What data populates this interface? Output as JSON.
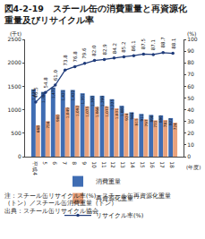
{
  "chart_data": {
    "type": "bar",
    "title": [
      "図4-2-19　スチール缶の消費重量と再資源化",
      "重量及びリサイクル率"
    ],
    "categories": [
      "平成4",
      "5",
      "6",
      "7",
      "8",
      "9",
      "10",
      "11",
      "12",
      "13",
      "14",
      "15",
      "16",
      "17",
      "18"
    ],
    "series": [
      {
        "name": "消費重量",
        "type": "bar",
        "color": "#3f6db3",
        "values": [
          1436,
          1380,
          1475,
          1421,
          1422,
          1351,
          1300,
          1299,
          1225,
          1085,
          946,
          911,
          890,
          880,
          822
        ],
        "value_labels": [
          "1,436",
          "1,380",
          "1,475",
          "1,421",
          "1,422",
          "1,351",
          "1,300",
          "1,299",
          "1,225",
          "1,085",
          "946",
          "911",
          "890",
          "880",
          "822"
        ]
      },
      {
        "name": "再資源化重量",
        "type": "bar",
        "color": "#e9a27c",
        "values": [
          668,
          756,
          900,
          1049,
          1092,
          1075,
          1066,
          1077,
          1031,
          924,
          815,
          797,
          775,
          781,
          724
        ],
        "value_labels": [
          "668",
          "756",
          "900",
          "1,049",
          "1,092",
          "1,075",
          "1,066",
          "1,077",
          "1,031",
          "924",
          "815",
          "797",
          "775",
          "781",
          "724"
        ]
      },
      {
        "name": "リサイクル率(%)",
        "type": "line",
        "axis": "y2",
        "color": "#1f3b7a",
        "marker": "circle",
        "line_style": "solid",
        "values": [
          46.5,
          54.8,
          61.0,
          73.8,
          76.8,
          79.6,
          82.0,
          82.9,
          84.2,
          85.2,
          86.1,
          87.5,
          87.1,
          88.7,
          88.1
        ],
        "value_labels": [
          "46.5",
          "54.8",
          "61.0",
          "73.8",
          "76.8",
          "79.6",
          "82.0",
          "82.9",
          "84.2",
          "85.2",
          "86.1",
          "87.5",
          "87.1",
          "88.7",
          "88.1"
        ]
      }
    ],
    "y_label": "(千t)",
    "y2_label": "(%)",
    "x_label": "(年度)",
    "ylim": [
      0,
      2500
    ],
    "yticks": [
      0,
      500,
      1000,
      1500,
      2000,
      2500
    ],
    "y2lim": [
      0,
      100
    ],
    "y2ticks": [
      0,
      10,
      20,
      30,
      40,
      50,
      60,
      70,
      80,
      90,
      100
    ],
    "grid": false,
    "legend": "bottom",
    "data_labels": true,
    "notes": [
      "注：スチール缶リサイクル率(%)＝スチール缶再資源化重量",
      "（トン）／スチール缶消費重量（トン）",
      "出典：スチール缶リサイクル協会"
    ]
  }
}
